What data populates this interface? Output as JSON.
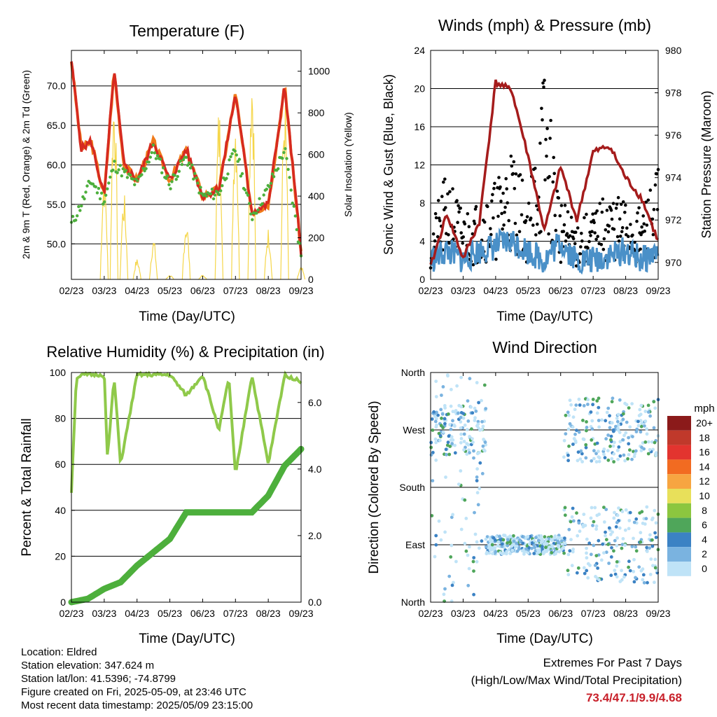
{
  "colors": {
    "temp_2m": "#d62a20",
    "temp_9m": "#f07a1a",
    "dewpoint": "#4daf3c",
    "solar": "#f5d64a",
    "wind": "#4a90c8",
    "gust": "#000000",
    "pressure": "#a51c1c",
    "rh": "#8fc94a",
    "precip": "#4daf3c"
  },
  "chart_data": [
    {
      "type": "line",
      "title": "Temperature (F)",
      "xlabel": "Time (Day/UTC)",
      "ylabel": "2m & 9m T (Red, Orange) & 2m Td (Green)",
      "y2label": "Solar Insolation (Yellow)",
      "x_ticks": [
        "02/23",
        "03/23",
        "04/23",
        "05/23",
        "06/23",
        "07/23",
        "08/23",
        "09/23"
      ],
      "ylim": [
        45.5,
        74.5
      ],
      "y_ticks": [
        "50.0",
        "55.0",
        "60.0",
        "65.0",
        "70.0"
      ],
      "y2lim": [
        0,
        1100
      ],
      "y2_ticks": [
        "0",
        "200",
        "400",
        "600",
        "800",
        "1000"
      ],
      "grid": true,
      "series": [
        {
          "key": "temperature",
          "x": [
            0,
            0.3,
            0.6,
            1,
            1.3,
            1.6,
            2,
            2.5,
            3,
            3.5,
            4,
            4.5,
            5,
            5.5,
            6,
            6.5,
            7
          ],
          "values": [
            73.2,
            62.0,
            63.0,
            56.0,
            72.0,
            60.0,
            58.0,
            63.0,
            58.0,
            62.0,
            56.0,
            57.0,
            69.0,
            54.0,
            55.0,
            70.0,
            49.0
          ]
        },
        {
          "key": "dewpoint",
          "x": [
            0,
            0.3,
            0.6,
            1,
            1.3,
            1.6,
            2,
            2.5,
            3,
            3.5,
            4,
            4.5,
            5,
            5.5,
            6,
            6.5,
            7
          ],
          "values": [
            52.5,
            55.0,
            58.0,
            55.5,
            60.0,
            59.0,
            57.5,
            62.0,
            57.5,
            61.0,
            56.0,
            56.5,
            62.0,
            53.5,
            57.0,
            62.0,
            48.5
          ]
        },
        {
          "key": "solar",
          "x": [
            1,
            1.3,
            1.6,
            2,
            2.5,
            3,
            3.5,
            4,
            4.5,
            5,
            5.5,
            6,
            6.5,
            7
          ],
          "values": [
            550,
            950,
            420,
            100,
            200,
            20,
            300,
            20,
            850,
            850,
            1100,
            250,
            900,
            60
          ]
        }
      ]
    },
    {
      "type": "line",
      "title": "Winds (mph) & Pressure (mb)",
      "xlabel": "Time (Day/UTC)",
      "ylabel": "Sonic Wind & Gust (Blue, Black)",
      "y2label": "Station Pressure (Maroon)",
      "x_ticks": [
        "02/23",
        "03/23",
        "04/23",
        "05/23",
        "06/23",
        "07/23",
        "08/23",
        "09/23"
      ],
      "ylim": [
        0,
        24
      ],
      "y_ticks": [
        "0",
        "4",
        "8",
        "12",
        "16",
        "20",
        "24"
      ],
      "y2lim": [
        969.2,
        980
      ],
      "y2_ticks": [
        "970",
        "972",
        "974",
        "976",
        "978",
        "980"
      ],
      "grid": true,
      "series": [
        {
          "key": "pressure",
          "x": [
            0,
            0.5,
            1,
            1.5,
            2,
            2.5,
            3,
            3.5,
            4,
            4.5,
            5,
            5.5,
            6,
            6.5,
            7
          ],
          "values": [
            969.8,
            972.3,
            970.2,
            971.9,
            978.5,
            978.1,
            975.0,
            971.5,
            974.5,
            972.0,
            975.2,
            975.5,
            974.0,
            973.0,
            971.0
          ]
        },
        {
          "key": "wind",
          "x": [
            0,
            0.5,
            1,
            1.5,
            2,
            2.5,
            3,
            3.5,
            4,
            4.5,
            5,
            5.5,
            6,
            6.5,
            7
          ],
          "values": [
            2,
            3,
            2,
            3,
            3.5,
            4,
            3,
            2,
            4,
            2,
            2,
            2.5,
            3,
            2,
            3
          ]
        },
        {
          "key": "gust",
          "x": [
            0,
            0.5,
            1,
            1.5,
            2,
            2.5,
            3,
            3.5,
            4,
            4.5,
            5,
            5.5,
            6,
            6.5,
            7
          ],
          "values": [
            5,
            11,
            7,
            8,
            10,
            14,
            8,
            22,
            8,
            6,
            7,
            9,
            8,
            7,
            12
          ]
        }
      ]
    },
    {
      "type": "line",
      "title": "Relative Humidity (%) & Precipitation (in)",
      "xlabel": "Time (Day/UTC)",
      "ylabel": "Percent & Total Rainfall",
      "x_ticks": [
        "02/23",
        "03/23",
        "04/23",
        "05/23",
        "06/23",
        "07/23",
        "08/23",
        "09/23"
      ],
      "ylim": [
        0,
        100
      ],
      "y_ticks": [
        "0",
        "20",
        "40",
        "60",
        "80",
        "100"
      ],
      "y2lim": [
        0,
        6.9
      ],
      "y2_ticks": [
        "0.0",
        "2.0",
        "4.0",
        "6.0"
      ],
      "grid": true,
      "series": [
        {
          "key": "rh",
          "x": [
            0,
            0.15,
            0.4,
            1,
            1.1,
            1.3,
            1.5,
            2,
            3,
            3.5,
            4,
            4.5,
            4.8,
            5,
            5.5,
            6,
            6.5,
            7
          ],
          "values": [
            48,
            98,
            99,
            99,
            62,
            98,
            60,
            99,
            99,
            90,
            99,
            75,
            98,
            55,
            99,
            60,
            99,
            96
          ]
        },
        {
          "key": "precip",
          "x": [
            0,
            0.5,
            1,
            1.5,
            2,
            2.5,
            3,
            3.5,
            4,
            4.5,
            5,
            5.5,
            6,
            6.5,
            7
          ],
          "values": [
            0,
            0.1,
            0.4,
            0.6,
            1.1,
            1.5,
            1.9,
            2.7,
            2.7,
            2.7,
            2.7,
            2.7,
            3.2,
            4.1,
            4.6
          ]
        }
      ]
    },
    {
      "type": "scatter",
      "title": "Wind Direction",
      "xlabel": "Time (Day/UTC)",
      "ylabel": "Direction (Colored By Speed)",
      "x_ticks": [
        "02/23",
        "03/23",
        "04/23",
        "05/23",
        "06/23",
        "07/23",
        "08/23",
        "09/23"
      ],
      "y_ticks": [
        "North",
        "East",
        "South",
        "West",
        "North"
      ],
      "legend": {
        "title": "mph",
        "labels": [
          "20+",
          "18",
          "16",
          "14",
          "12",
          "10",
          "8",
          "6",
          "4",
          "2",
          "0"
        ],
        "colors": [
          "#8b1a1a",
          "#c0392b",
          "#e3342f",
          "#f26b21",
          "#f7a541",
          "#e8e05a",
          "#8cc63f",
          "#4fa65a",
          "#3b82c4",
          "#7ab3e0",
          "#bfe3f7"
        ]
      }
    }
  ],
  "info": {
    "location": "Location: Eldred",
    "elevation": "Station elevation: 347.624 m",
    "latlon": "Station lat/lon: 41.5396; -74.8799",
    "created": "Figure created on Fri, 2025-05-09, at 23:46 UTC",
    "recent": "Most recent data timestamp: 2025/05/09 23:15:00"
  },
  "extremes": {
    "line1": "Extremes For Past 7 Days",
    "line2": "(High/Low/Max Wind/Total Precipitation)",
    "values": "73.4/47.1/9.9/4.68"
  }
}
